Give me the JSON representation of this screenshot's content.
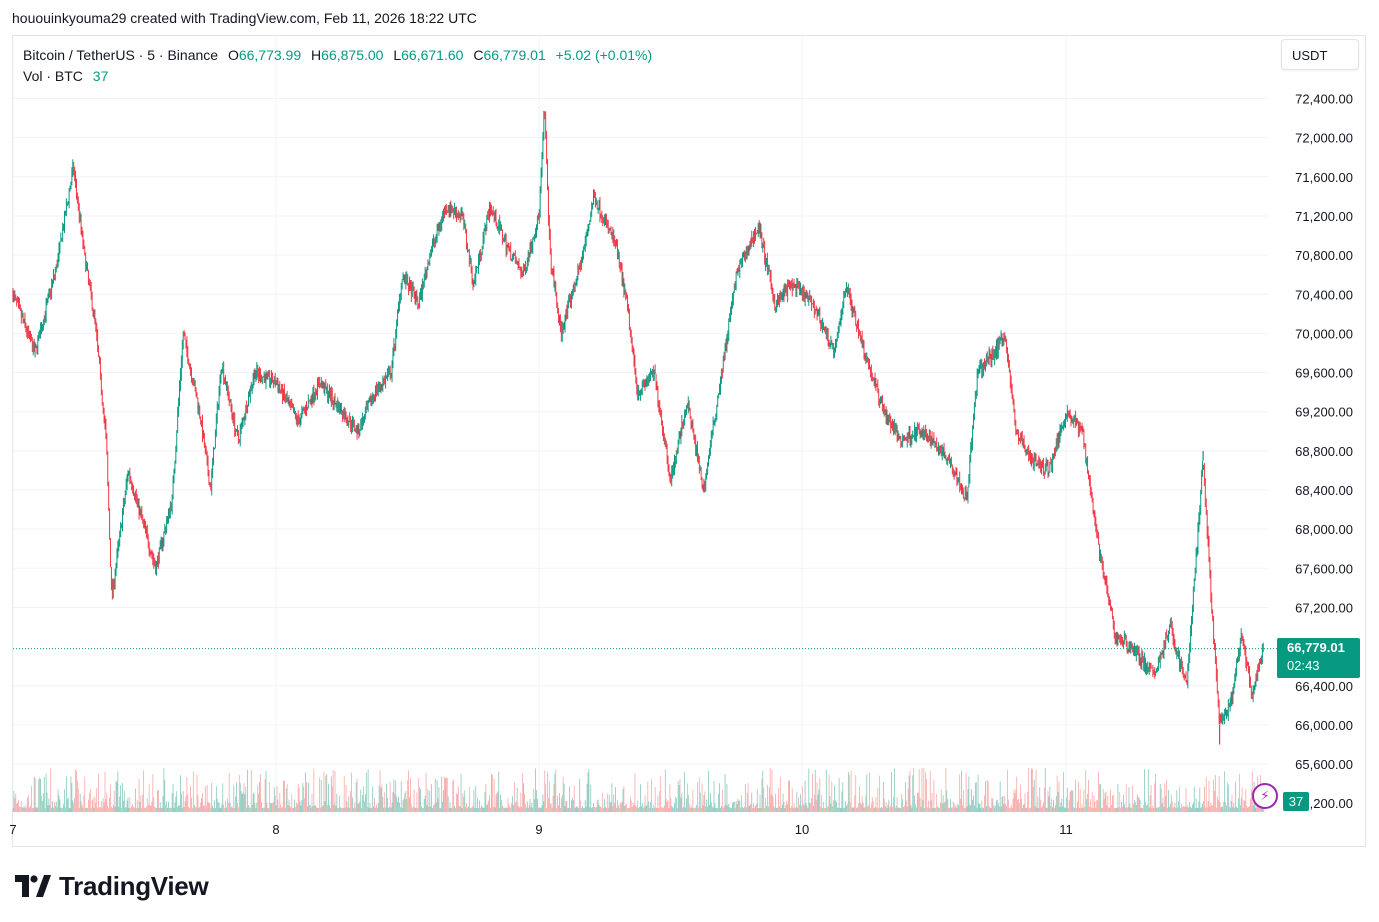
{
  "header": {
    "creator_line": "hououinkyouma29 created with TradingView.com, Feb 11, 2026 18:22 UTC"
  },
  "legend": {
    "symbol": "Bitcoin / TetherUS · 5 · Binance",
    "open_label": "O",
    "open": "66,773.99",
    "high_label": "H",
    "high": "66,875.00",
    "low_label": "L",
    "low": "66,671.60",
    "close_label": "C",
    "close": "66,779.01",
    "change": "+5.02 (+0.01%)",
    "vol_label": "Vol · BTC",
    "vol_value": "37"
  },
  "currency_button": "USDT",
  "last_price": {
    "price": "66,779.01",
    "countdown": "02:43"
  },
  "volume_tag": "37",
  "brand": {
    "name": "TradingView"
  },
  "icons": {
    "flash": "lightning-icon",
    "logo": "tradingview-logo-icon"
  },
  "colors": {
    "up": "#089981",
    "down": "#f23645",
    "up_volume": "#89c9bd",
    "down_volume": "#f7a9a7",
    "grid": "#f0f3fa"
  },
  "chart_data": {
    "type": "candlestick",
    "interval": "5",
    "y_axis_ticks": [
      "72,400.00",
      "72,000.00",
      "71,600.00",
      "71,200.00",
      "70,800.00",
      "70,400.00",
      "70,000.00",
      "69,600.00",
      "69,200.00",
      "68,800.00",
      "68,400.00",
      "68,000.00",
      "67,600.00",
      "67,200.00",
      "66,400.00",
      "66,000.00",
      "65,600.00",
      "65,200.00"
    ],
    "y_axis_tick_values": [
      72400,
      72000,
      71600,
      71200,
      70800,
      70400,
      70000,
      69600,
      69200,
      68800,
      68400,
      68000,
      67600,
      67200,
      66400,
      66000,
      65600,
      65200
    ],
    "x_axis_ticks": [
      "7",
      "8",
      "9",
      "10",
      "11"
    ],
    "y_range": [
      65200,
      72400
    ],
    "last_price": 66779.01,
    "grid": true,
    "price_path": [
      [
        "7 00:00",
        70400
      ],
      [
        "7 02:00",
        69800
      ],
      [
        "7 04:00",
        70700
      ],
      [
        "7 05:30",
        71700
      ],
      [
        "7 06:30",
        70800
      ],
      [
        "7 07:30",
        70100
      ],
      [
        "7 08:30",
        68900
      ],
      [
        "7 09:00",
        67300
      ],
      [
        "7 10:30",
        68600
      ],
      [
        "7 12:00",
        68000
      ],
      [
        "7 13:00",
        67600
      ],
      [
        "7 14:30",
        68300
      ],
      [
        "7 15:30",
        70000
      ],
      [
        "7 17:00",
        69200
      ],
      [
        "7 18:00",
        68400
      ],
      [
        "7 19:00",
        69700
      ],
      [
        "7 20:30",
        68900
      ],
      [
        "7 22:00",
        69600
      ],
      [
        "8 00:00",
        69500
      ],
      [
        "8 02:00",
        69100
      ],
      [
        "8 04:00",
        69500
      ],
      [
        "8 06:00",
        69200
      ],
      [
        "8 07:30",
        69000
      ],
      [
        "8 09:00",
        69400
      ],
      [
        "8 10:30",
        69600
      ],
      [
        "8 11:30",
        70600
      ],
      [
        "8 13:00",
        70300
      ],
      [
        "8 14:00",
        70800
      ],
      [
        "8 15:30",
        71300
      ],
      [
        "8 17:00",
        71200
      ],
      [
        "8 18:00",
        70500
      ],
      [
        "8 19:30",
        71300
      ],
      [
        "8 21:00",
        70900
      ],
      [
        "8 22:30",
        70600
      ],
      [
        "9 00:00",
        71200
      ],
      [
        "9 00:30",
        72300
      ],
      [
        "9 01:00",
        70800
      ],
      [
        "9 02:00",
        70000
      ],
      [
        "9 04:00",
        70800
      ],
      [
        "9 05:00",
        71400
      ],
      [
        "9 07:00",
        70900
      ],
      [
        "9 08:00",
        70300
      ],
      [
        "9 09:00",
        69400
      ],
      [
        "9 10:30",
        69600
      ],
      [
        "9 12:00",
        68500
      ],
      [
        "9 13:30",
        69300
      ],
      [
        "9 15:00",
        68400
      ],
      [
        "9 16:30",
        69500
      ],
      [
        "9 18:00",
        70600
      ],
      [
        "9 20:00",
        71100
      ],
      [
        "9 21:30",
        70300
      ],
      [
        "9 23:00",
        70500
      ],
      [
        "10 01:00",
        70300
      ],
      [
        "10 03:00",
        69800
      ],
      [
        "10 04:00",
        70500
      ],
      [
        "10 06:00",
        69700
      ],
      [
        "10 07:30",
        69200
      ],
      [
        "10 09:00",
        68900
      ],
      [
        "10 10:30",
        69000
      ],
      [
        "10 12:00",
        68900
      ],
      [
        "10 13:30",
        68700
      ],
      [
        "10 15:00",
        68300
      ],
      [
        "10 16:00",
        69600
      ],
      [
        "10 17:30",
        69800
      ],
      [
        "10 18:30",
        70000
      ],
      [
        "10 19:30",
        69000
      ],
      [
        "10 21:00",
        68700
      ],
      [
        "10 22:30",
        68600
      ],
      [
        "11 00:00",
        69200
      ],
      [
        "11 01:30",
        69000
      ],
      [
        "11 03:00",
        67800
      ],
      [
        "11 04:30",
        66900
      ],
      [
        "11 06:00",
        66800
      ],
      [
        "11 08:00",
        66500
      ],
      [
        "11 09:30",
        67000
      ],
      [
        "11 11:00",
        66400
      ],
      [
        "11 12:30",
        68700
      ],
      [
        "11 13:30",
        66800
      ],
      [
        "11 14:00",
        66000
      ],
      [
        "11 15:00",
        66200
      ],
      [
        "11 16:00",
        66900
      ],
      [
        "11 17:00",
        66300
      ],
      [
        "11 18:00",
        66779
      ]
    ],
    "spikes": [
      [
        "9 00:30",
        72300
      ],
      [
        "7 09:00",
        67300
      ],
      [
        "11 12:30",
        68800
      ],
      [
        "11 14:00",
        65800
      ]
    ]
  }
}
